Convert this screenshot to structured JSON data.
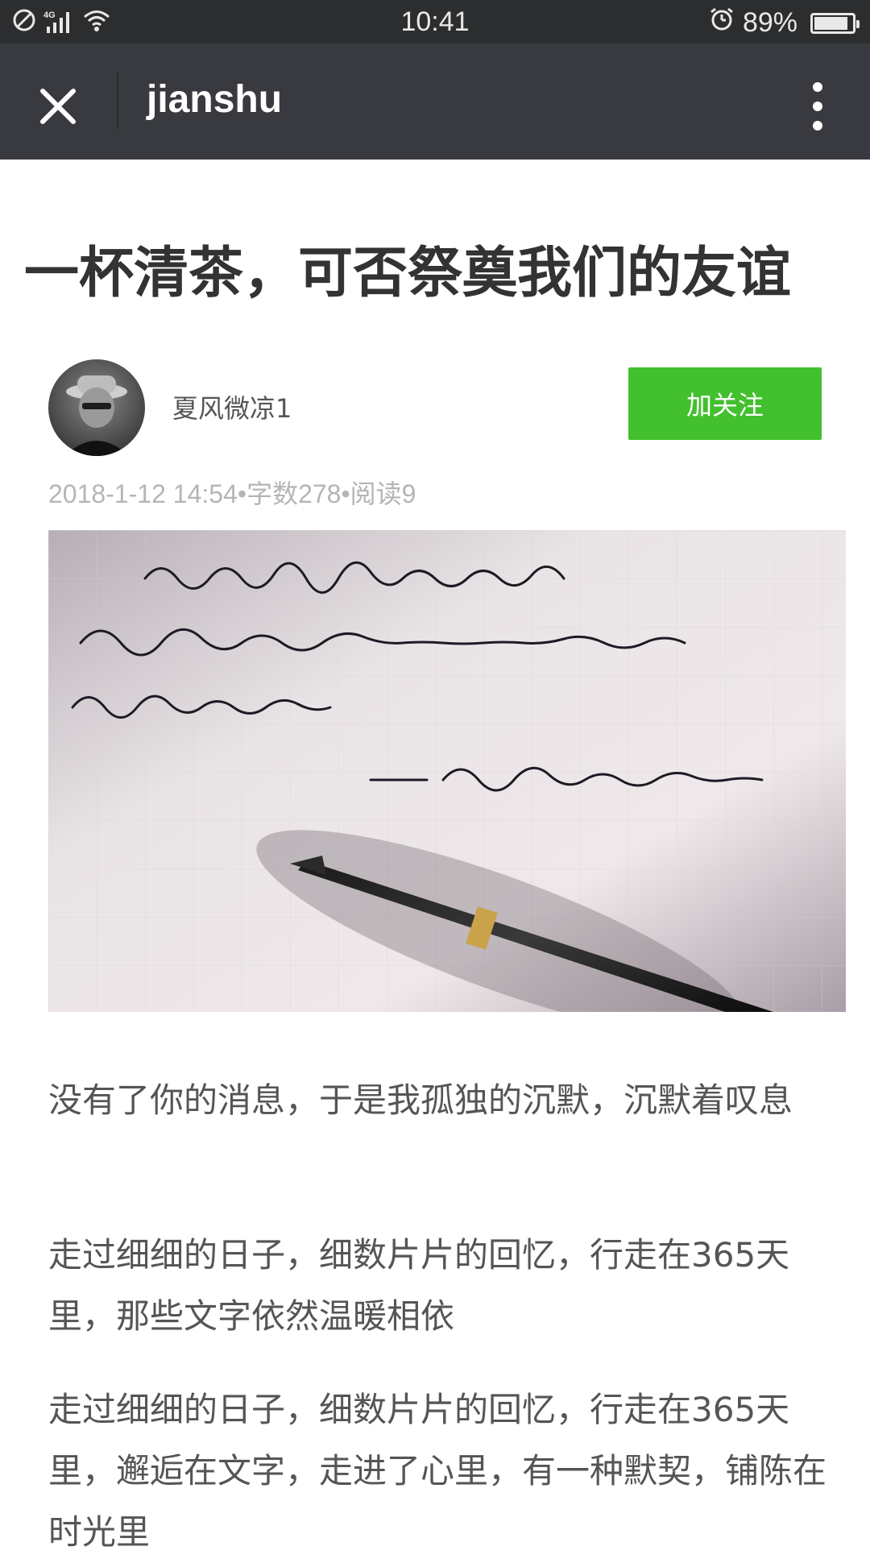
{
  "status_bar": {
    "time": "10:41",
    "battery_percent": "89%",
    "battery_level": 0.89,
    "icons": [
      "no-sim-icon",
      "signal-4g-icon",
      "wifi-icon",
      "alarm-icon",
      "battery-icon"
    ],
    "network_label": "4G"
  },
  "top_bar": {
    "title": "jianshu",
    "close_icon": "close-icon",
    "more_icon": "more-vertical-icon"
  },
  "article": {
    "title": "一杯清茶，可否祭奠我们的友谊",
    "author": "夏风微凉1",
    "follow_label": "加关注",
    "meta": "2018-1-12 14:54•字数278•阅读9",
    "hero_image": "handwritten-note-with-fountain-pen",
    "paragraphs": [
      "没有了你的消息，于是我孤独的沉默，沉默着叹息",
      "走过细细的日子，细数片片的回忆，行走在365天里，那些文字依然温暖相依",
      "走过细细的日子，细数片片的回忆，行走在365天里，邂逅在文字，走进了心里，有一种默契，铺陈在时光里"
    ]
  },
  "colors": {
    "status_bar_bg": "#2b2d2f",
    "top_bar_bg": "#393a3f",
    "follow_button_bg": "#42c02e",
    "title_text": "#333333",
    "body_text": "#555555",
    "meta_text": "#b5b5b5"
  }
}
